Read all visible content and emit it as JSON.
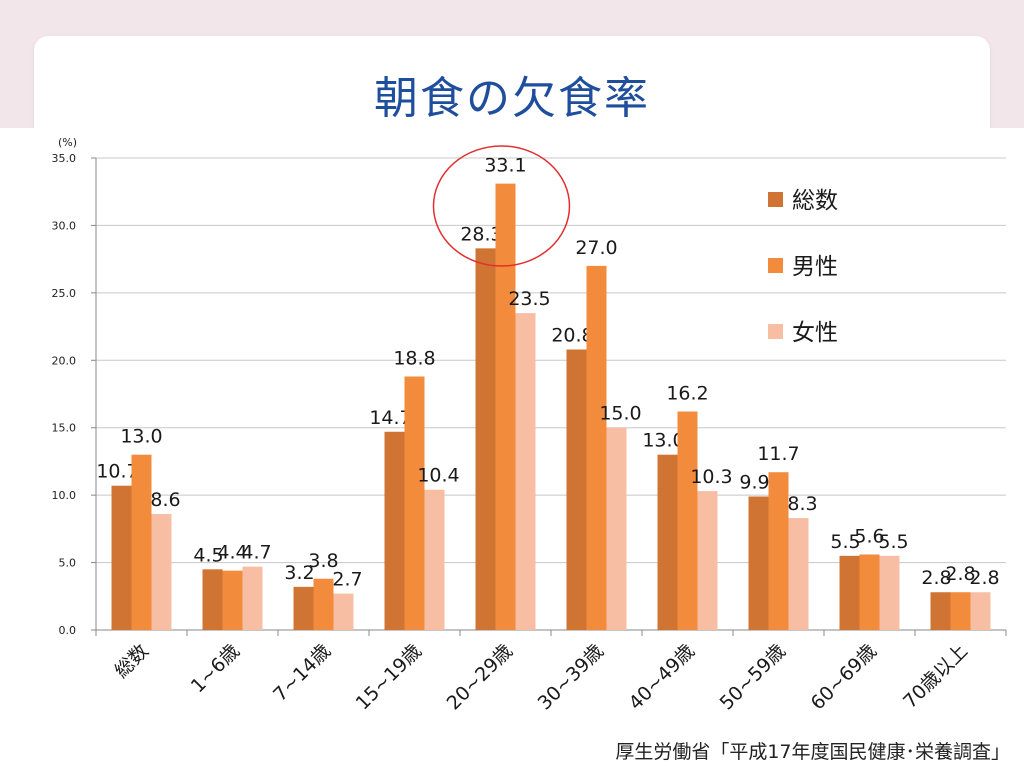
{
  "slide": {
    "title": "朝食の欠食率",
    "source": "厚生労働省「平成17年度国民健康･栄養調査」"
  },
  "chart_data": {
    "type": "bar",
    "title": "",
    "ylabel": "(%)",
    "xlabel": "",
    "ylim": [
      0,
      35
    ],
    "yticks": [
      "0.0",
      "5.0",
      "10.0",
      "15.0",
      "20.0",
      "25.0",
      "30.0",
      "35.0"
    ],
    "categories": [
      "総数",
      "1~6歳",
      "7~14歳",
      "15~19歳",
      "20~29歳",
      "30~39歳",
      "40~49歳",
      "50~59歳",
      "60~69歳",
      "70歳以上"
    ],
    "series": [
      {
        "name": "総数",
        "color": "#cf7433",
        "values": [
          10.7,
          4.5,
          3.2,
          14.7,
          28.3,
          20.8,
          13.0,
          9.9,
          5.5,
          2.8
        ]
      },
      {
        "name": "男性",
        "color": "#f38b3c",
        "values": [
          13.0,
          4.4,
          3.8,
          18.8,
          33.1,
          27.0,
          16.2,
          11.7,
          5.6,
          2.8
        ]
      },
      {
        "name": "女性",
        "color": "#f8bea4",
        "values": [
          8.6,
          4.7,
          2.7,
          10.4,
          23.5,
          15.0,
          10.3,
          8.3,
          5.5,
          2.8
        ]
      }
    ],
    "grid": true,
    "legend_position": "right",
    "highlight": {
      "category": "20~29歳",
      "shape": "circle",
      "color": "#e03030"
    }
  }
}
